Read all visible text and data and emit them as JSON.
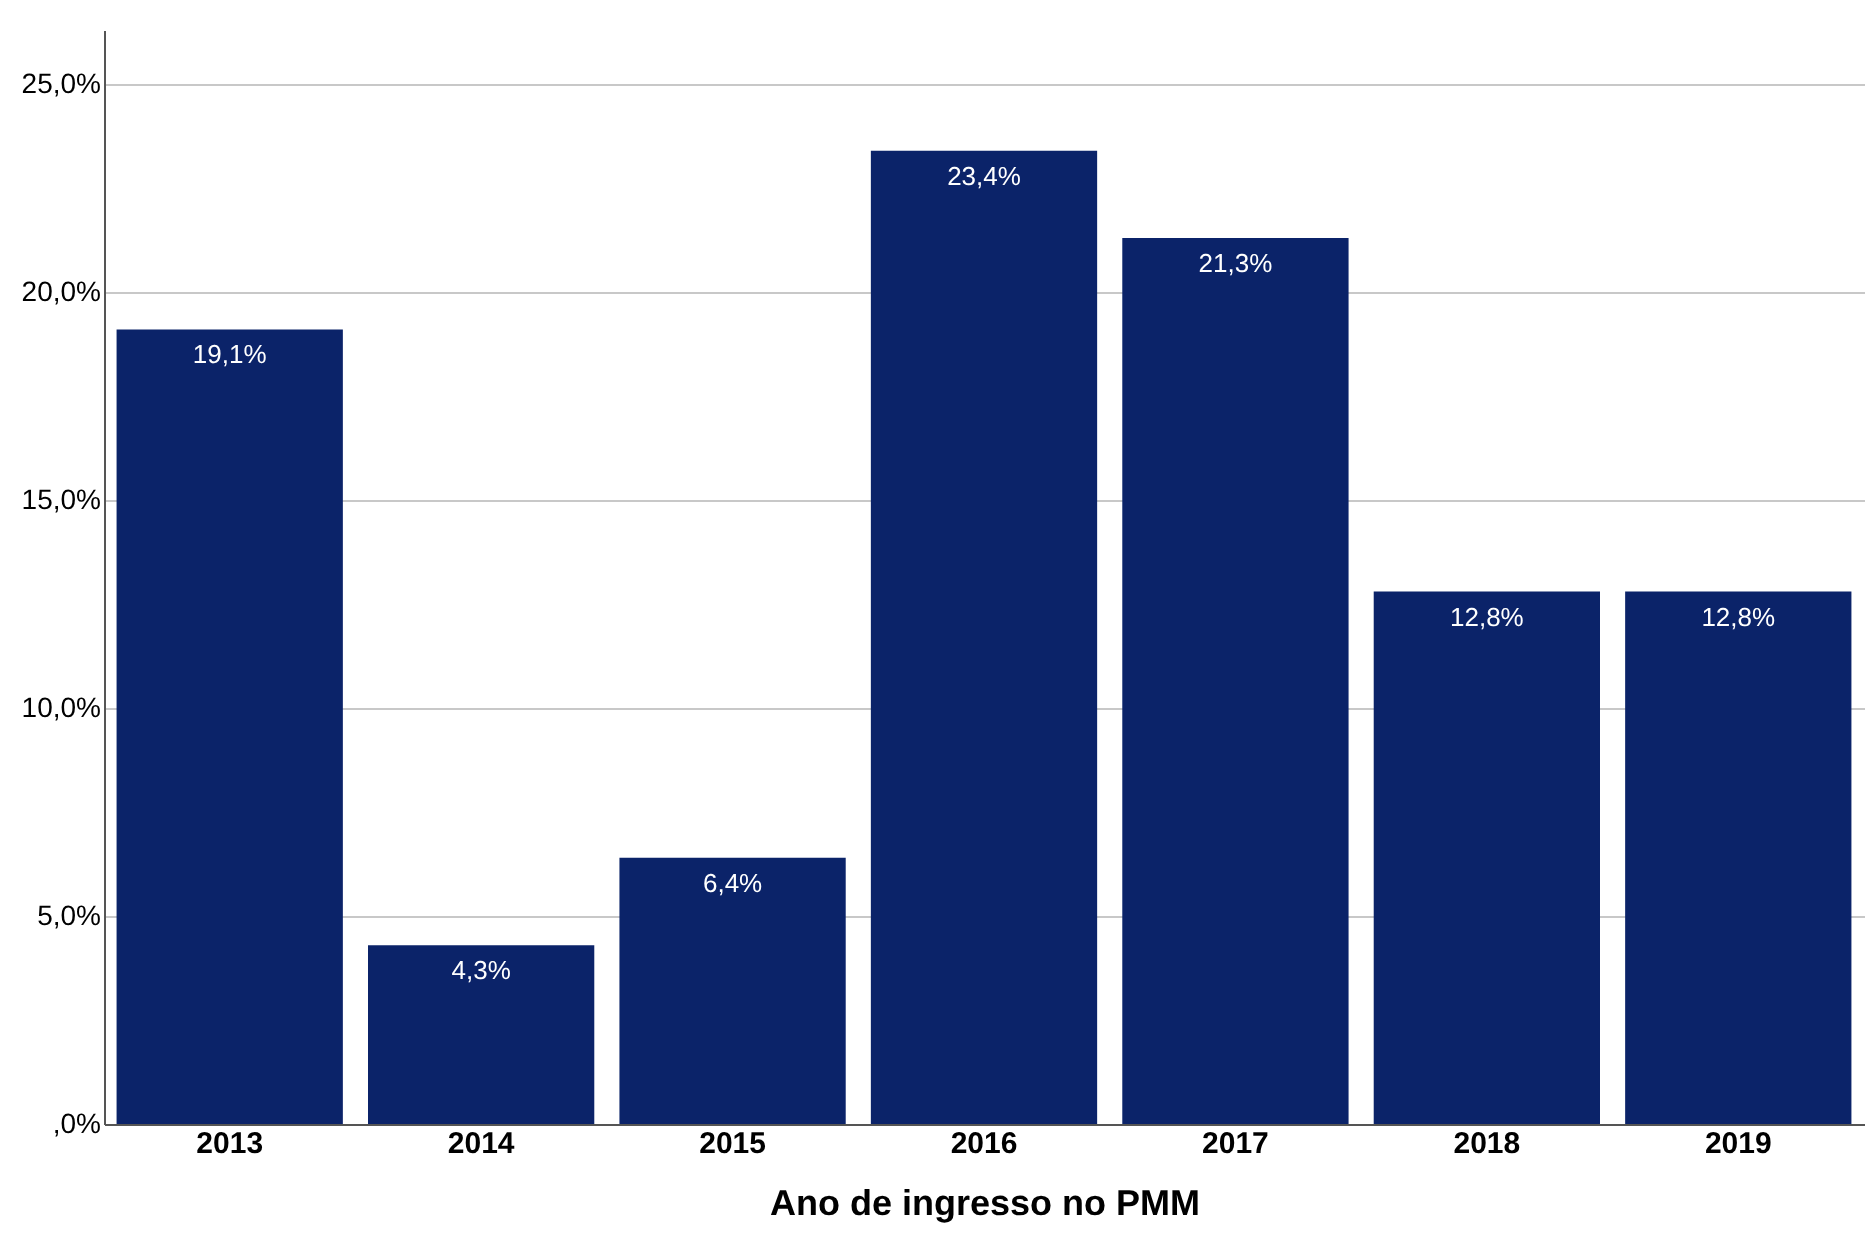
{
  "chart_data": {
    "type": "bar",
    "xlabel": "Ano de ingresso no PMM",
    "categories": [
      "2013",
      "2014",
      "2015",
      "2016",
      "2017",
      "2018",
      "2019"
    ],
    "values": [
      19.1,
      4.3,
      6.4,
      23.4,
      21.3,
      12.8,
      12.8
    ],
    "value_labels": [
      "19,1%",
      "4,3%",
      "6,4%",
      "23,4%",
      "21,3%",
      "12,8%",
      "12,8%"
    ],
    "color": "#0b2369",
    "ylim": [
      0,
      26.3
    ],
    "yticks": [
      {
        "value": 0,
        "label": ",0%"
      },
      {
        "value": 5,
        "label": "5,0%"
      },
      {
        "value": 10,
        "label": "10,0%"
      },
      {
        "value": 15,
        "label": "15,0%"
      },
      {
        "value": 20,
        "label": "20,0%"
      },
      {
        "value": 25,
        "label": "25,0%"
      }
    ],
    "grid": "y"
  }
}
